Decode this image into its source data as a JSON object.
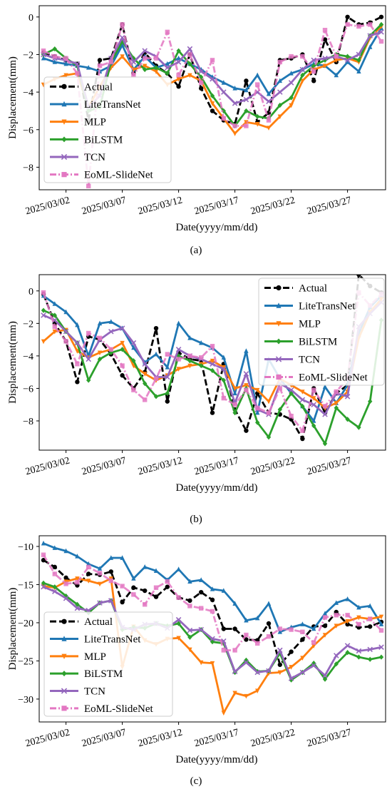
{
  "figure": {
    "x_tick_labels": [
      "2025/03/02",
      "2025/03/07",
      "2025/03/12",
      "2025/03/17",
      "2025/03/22",
      "2025/03/27"
    ],
    "xlabel": "Date(yyyy/mm/dd)",
    "ylabel": "Displacement(mm)"
  },
  "series_styles": [
    {
      "name": "Actual",
      "color": "#000000",
      "marker": "circle",
      "dash": "dashed"
    },
    {
      "name": "LiteTransNet",
      "color": "#1f77b4",
      "marker": "triangle-up",
      "dash": "solid"
    },
    {
      "name": "MLP",
      "color": "#ff7f0e",
      "marker": "triangle-down",
      "dash": "solid"
    },
    {
      "name": "BiLSTM",
      "color": "#2ca02c",
      "marker": "diamond",
      "dash": "solid"
    },
    {
      "name": "TCN",
      "color": "#9467bd",
      "marker": "x",
      "dash": "solid"
    },
    {
      "name": "EoML-SlideNet",
      "color": "#e377c2",
      "marker": "square",
      "dash": "dashdot"
    }
  ],
  "chart_data": [
    {
      "panel": "(a)",
      "type": "line",
      "xlabel": "Date(yyyy/mm/dd)",
      "ylabel": "Displacement(mm)",
      "x": [
        "2025/02/28",
        "2025/03/01",
        "2025/03/02",
        "2025/03/03",
        "2025/03/04",
        "2025/03/05",
        "2025/03/06",
        "2025/03/07",
        "2025/03/08",
        "2025/03/09",
        "2025/03/10",
        "2025/03/11",
        "2025/03/12",
        "2025/03/13",
        "2025/03/14",
        "2025/03/15",
        "2025/03/16",
        "2025/03/17",
        "2025/03/18",
        "2025/03/19",
        "2025/03/20",
        "2025/03/21",
        "2025/03/22",
        "2025/03/23",
        "2025/03/24",
        "2025/03/25",
        "2025/03/26",
        "2025/03/27",
        "2025/03/28",
        "2025/03/29",
        "2025/03/30"
      ],
      "ylim": [
        -9.2,
        0.6
      ],
      "yticks": [
        -8,
        -6,
        -4,
        -2,
        0
      ],
      "legend_position": "lower-left",
      "series": [
        {
          "name": "Actual",
          "values": [
            -1.9,
            -2.1,
            -2.3,
            -2.5,
            -5.5,
            -2.3,
            -2.2,
            -0.4,
            -3.0,
            -1.9,
            -2.6,
            -3.0,
            -3.7,
            -2.0,
            -3.8,
            -5.0,
            -5.5,
            -5.7,
            -3.4,
            -5.6,
            -5.1,
            -2.3,
            -2.2,
            -2.0,
            -3.4,
            -1.2,
            -2.4,
            0.0,
            -0.4,
            -0.3,
            0.0
          ]
        },
        {
          "name": "LiteTransNet",
          "values": [
            -2.2,
            -2.4,
            -2.5,
            -2.6,
            -2.7,
            -2.9,
            -2.6,
            -1.5,
            -2.8,
            -2.1,
            -2.7,
            -2.5,
            -2.2,
            -2.5,
            -2.8,
            -3.2,
            -3.5,
            -3.8,
            -3.9,
            -3.1,
            -4.1,
            -3.4,
            -3.0,
            -2.8,
            -2.5,
            -2.6,
            -3.1,
            -2.4,
            -2.9,
            -1.6,
            -0.6
          ]
        },
        {
          "name": "MLP",
          "values": [
            -3.6,
            -3.3,
            -3.1,
            -3.0,
            -4.8,
            -3.7,
            -2.7,
            -2.1,
            -2.8,
            -2.6,
            -2.9,
            -3.6,
            -3.3,
            -3.1,
            -3.4,
            -4.6,
            -5.4,
            -6.2,
            -5.6,
            -5.7,
            -5.9,
            -5.3,
            -4.7,
            -3.4,
            -2.8,
            -2.6,
            -2.3,
            -2.2,
            -2.4,
            -1.1,
            -0.5
          ]
        },
        {
          "name": "BiLSTM",
          "values": [
            -2.0,
            -1.7,
            -2.2,
            -2.6,
            -5.0,
            -4.8,
            -2.4,
            -1.3,
            -2.2,
            -2.8,
            -2.7,
            -3.0,
            -1.8,
            -2.5,
            -3.2,
            -4.2,
            -5.0,
            -5.8,
            -5.0,
            -5.3,
            -5.4,
            -4.7,
            -4.3,
            -3.1,
            -2.6,
            -2.3,
            -2.0,
            -2.1,
            -2.3,
            -1.0,
            -0.4
          ]
        },
        {
          "name": "TCN",
          "values": [
            -2.0,
            -2.2,
            -2.3,
            -2.5,
            -4.8,
            -4.2,
            -2.2,
            -1.1,
            -2.4,
            -1.8,
            -2.1,
            -2.7,
            -2.4,
            -1.7,
            -2.9,
            -3.3,
            -4.0,
            -4.6,
            -4.4,
            -4.0,
            -4.5,
            -4.0,
            -3.5,
            -2.8,
            -2.3,
            -2.2,
            -2.1,
            -2.3,
            -2.0,
            -1.0,
            -0.8
          ]
        },
        {
          "name": "EoML-SlideNet",
          "values": [
            -1.8,
            -2.1,
            -2.2,
            -3.0,
            -9.0,
            -2.6,
            -2.4,
            -0.4,
            -3.1,
            -2.2,
            -2.2,
            -0.8,
            -3.1,
            -2.0,
            -3.5,
            -2.3,
            -5.4,
            -5.8,
            -5.8,
            -3.6,
            -5.5,
            -2.4,
            -2.1,
            -2.1,
            -2.9,
            -0.7,
            -2.1,
            -0.4,
            -0.5,
            -0.4,
            -1.3
          ]
        }
      ]
    },
    {
      "panel": "(b)",
      "type": "line",
      "xlabel": "Date(yyyy/mm/dd)",
      "ylabel": "Displacement(mm)",
      "x": [
        "2025/02/28",
        "2025/03/01",
        "2025/03/02",
        "2025/03/03",
        "2025/03/04",
        "2025/03/05",
        "2025/03/06",
        "2025/03/07",
        "2025/03/08",
        "2025/03/09",
        "2025/03/10",
        "2025/03/11",
        "2025/03/12",
        "2025/03/13",
        "2025/03/14",
        "2025/03/15",
        "2025/03/16",
        "2025/03/17",
        "2025/03/18",
        "2025/03/19",
        "2025/03/20",
        "2025/03/21",
        "2025/03/22",
        "2025/03/23",
        "2025/03/24",
        "2025/03/25",
        "2025/03/26",
        "2025/03/27",
        "2025/03/28",
        "2025/03/29",
        "2025/03/30"
      ],
      "ylim": [
        -9.8,
        1.0
      ],
      "yticks": [
        -8,
        -6,
        -4,
        -2,
        0
      ],
      "legend_position": "upper-right",
      "series": [
        {
          "name": "Actual",
          "values": [
            -0.2,
            -2.0,
            -3.1,
            -5.6,
            -2.8,
            -3.0,
            -3.9,
            -5.2,
            -6.0,
            -5.0,
            -2.3,
            -6.8,
            -3.8,
            -4.2,
            -4.3,
            -7.5,
            -4.5,
            -7.3,
            -8.6,
            -6.3,
            -7.5,
            -7.6,
            -7.9,
            -9.1,
            -6.0,
            -7.5,
            -6.3,
            -5.8,
            1.0,
            0.3,
            -0.1
          ]
        },
        {
          "name": "LiteTransNet",
          "values": [
            -0.3,
            -0.8,
            -1.3,
            -2.1,
            -4.0,
            -2.0,
            -1.9,
            -2.3,
            -3.5,
            -4.4,
            -3.9,
            -4.7,
            -2.0,
            -2.9,
            -3.2,
            -3.5,
            -4.1,
            -6.3,
            -3.7,
            -7.5,
            -4.2,
            -5.4,
            -6.3,
            -7.1,
            -8.0,
            -5.9,
            -6.9,
            -5.8,
            -2.6,
            -1.0,
            -0.3
          ]
        },
        {
          "name": "MLP",
          "values": [
            -3.1,
            -2.5,
            -2.4,
            -3.7,
            -4.1,
            -3.8,
            -3.6,
            -3.2,
            -4.6,
            -5.1,
            -5.5,
            -5.2,
            -4.8,
            -4.6,
            -4.5,
            -4.3,
            -4.7,
            -6.0,
            -5.8,
            -6.1,
            -6.8,
            -5.4,
            -5.8,
            -6.2,
            -6.6,
            -7.2,
            -6.9,
            -6.2,
            -2.9,
            -1.3,
            -0.5
          ]
        },
        {
          "name": "BiLSTM",
          "values": [
            -1.2,
            -1.5,
            -2.5,
            -3.2,
            -5.5,
            -4.2,
            -3.8,
            -3.6,
            -4.3,
            -5.7,
            -6.5,
            -6.3,
            -4.0,
            -4.3,
            -4.6,
            -4.9,
            -5.5,
            -7.5,
            -6.0,
            -8.1,
            -9.0,
            -7.3,
            -6.3,
            -7.1,
            -8.3,
            -9.4,
            -7.2,
            -7.9,
            -8.4,
            -6.8,
            -1.8
          ]
        },
        {
          "name": "TCN",
          "values": [
            -1.5,
            -1.8,
            -2.5,
            -3.2,
            -4.2,
            -3.0,
            -2.5,
            -2.3,
            -3.2,
            -4.5,
            -5.3,
            -5.3,
            -3.6,
            -4.0,
            -4.2,
            -4.5,
            -4.8,
            -6.9,
            -5.1,
            -7.3,
            -7.6,
            -5.7,
            -6.1,
            -6.7,
            -7.0,
            -7.6,
            -6.3,
            -6.5,
            -2.2,
            -1.4,
            -0.7
          ]
        },
        {
          "name": "EoML-SlideNet",
          "values": [
            -0.1,
            -2.2,
            -3.1,
            -4.5,
            -2.6,
            -2.9,
            -3.6,
            -4.6,
            -6.1,
            -6.7,
            -5.4,
            -3.9,
            -4.2,
            -4.0,
            -4.1,
            -3.4,
            -6.6,
            -7.0,
            -6.1,
            -7.2,
            -7.5,
            -6.0,
            -7.7,
            -8.6,
            -6.1,
            -7.1,
            -6.2,
            -5.4,
            -0.1,
            -0.9,
            -0.2
          ]
        }
      ]
    },
    {
      "panel": "(c)",
      "type": "line",
      "xlabel": "Date(yyyy/mm/dd)",
      "ylabel": "Displacement(mm)",
      "x": [
        "2025/02/28",
        "2025/03/01",
        "2025/03/02",
        "2025/03/03",
        "2025/03/04",
        "2025/03/05",
        "2025/03/06",
        "2025/03/07",
        "2025/03/08",
        "2025/03/09",
        "2025/03/10",
        "2025/03/11",
        "2025/03/12",
        "2025/03/13",
        "2025/03/14",
        "2025/03/15",
        "2025/03/16",
        "2025/03/17",
        "2025/03/18",
        "2025/03/19",
        "2025/03/20",
        "2025/03/21",
        "2025/03/22",
        "2025/03/23",
        "2025/03/24",
        "2025/03/25",
        "2025/03/26",
        "2025/03/27",
        "2025/03/28",
        "2025/03/29",
        "2025/03/30"
      ],
      "ylim": [
        -33.0,
        -8.6
      ],
      "yticks": [
        -30,
        -25,
        -20,
        -15,
        -10
      ],
      "legend_position": "lower-left",
      "series": [
        {
          "name": "Actual",
          "values": [
            -11.8,
            -12.7,
            -14.1,
            -15.1,
            -13.6,
            -13.7,
            -13.3,
            -17.3,
            -15.4,
            -15.8,
            -16.6,
            -15.3,
            -16.7,
            -17.1,
            -16.0,
            -17.0,
            -20.8,
            -20.8,
            -22.2,
            -22.3,
            -20.1,
            -25.5,
            -23.8,
            -22.2,
            -20.5,
            -20.4,
            -18.6,
            -20.2,
            -20.6,
            -20.5,
            -19.9
          ]
        },
        {
          "name": "LiteTransNet",
          "values": [
            -9.6,
            -10.2,
            -10.6,
            -11.3,
            -12.3,
            -12.9,
            -11.5,
            -11.5,
            -14.2,
            -12.7,
            -13.2,
            -14.4,
            -13.0,
            -14.6,
            -14.4,
            -15.6,
            -15.8,
            -17.5,
            -19.7,
            -19.4,
            -17.5,
            -21.2,
            -20.6,
            -20.2,
            -20.8,
            -18.8,
            -17.4,
            -16.9,
            -18.0,
            -17.8,
            -20.2
          ]
        },
        {
          "name": "MLP",
          "values": [
            -15.2,
            -15.4,
            -14.6,
            -14.2,
            -14.5,
            -14.9,
            -14.2,
            -25.8,
            -20.5,
            -22.3,
            -22.8,
            -22.1,
            -22.0,
            -23.5,
            -25.2,
            -25.3,
            -31.8,
            -29.2,
            -29.6,
            -28.9,
            -26.6,
            -26.5,
            -25.8,
            -24.6,
            -23.0,
            -21.6,
            -20.4,
            -19.8,
            -19.3,
            -19.5,
            -19.2
          ]
        },
        {
          "name": "BiLSTM",
          "values": [
            -14.8,
            -15.3,
            -16.5,
            -17.6,
            -18.7,
            -17.4,
            -17.1,
            -20.9,
            -20.6,
            -20.7,
            -20.1,
            -20.4,
            -20.1,
            -21.9,
            -20.9,
            -22.5,
            -22.7,
            -26.5,
            -24.9,
            -26.4,
            -26.3,
            -24.0,
            -27.5,
            -26.5,
            -25.3,
            -27.4,
            -25.4,
            -23.9,
            -24.5,
            -24.8,
            -24.5
          ]
        },
        {
          "name": "TCN",
          "values": [
            -15.3,
            -15.9,
            -16.8,
            -18.1,
            -18.4,
            -17.4,
            -17.1,
            -20.6,
            -20.9,
            -20.2,
            -20.1,
            -20.7,
            -19.6,
            -21.0,
            -20.9,
            -22.1,
            -22.4,
            -26.4,
            -25.2,
            -26.5,
            -26.3,
            -23.6,
            -27.3,
            -26.5,
            -25.6,
            -26.9,
            -24.3,
            -23.0,
            -23.7,
            -23.5,
            -23.2
          ]
        },
        {
          "name": "EoML-SlideNet",
          "values": [
            -11.1,
            -13.6,
            -14.9,
            -14.7,
            -12.7,
            -13.5,
            -14.5,
            -15.2,
            -16.3,
            -17.6,
            -15.4,
            -14.6,
            -16.7,
            -17.8,
            -18.1,
            -18.5,
            -23.6,
            -23.6,
            -21.6,
            -22.7,
            -21.8,
            -20.8,
            -20.9,
            -21.2,
            -22.6,
            -19.3,
            -19.0,
            -19.0,
            -20.2,
            -19.5,
            -21.0
          ]
        }
      ]
    }
  ]
}
